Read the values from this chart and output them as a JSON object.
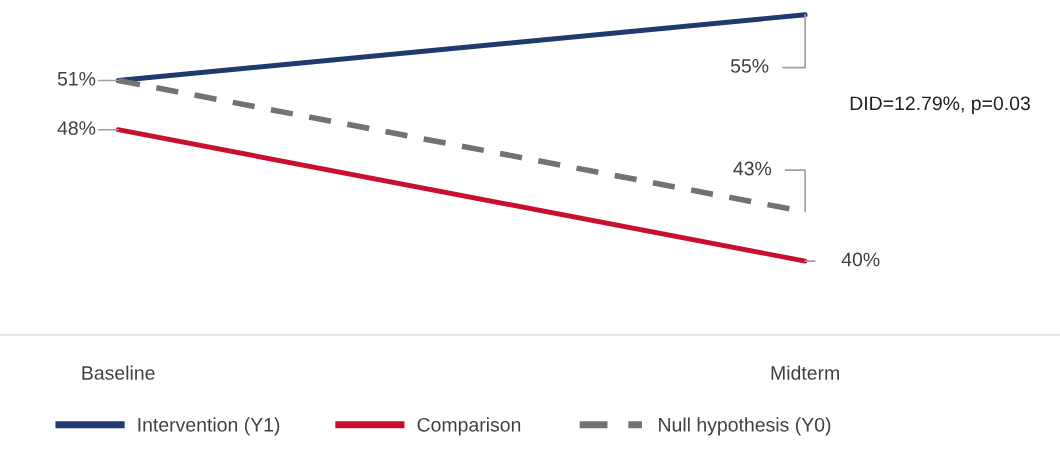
{
  "chart_data": {
    "type": "line",
    "categories": [
      "Baseline",
      "Midterm"
    ],
    "series": [
      {
        "name": "Intervention (Y1)",
        "color": "#1f3a6e",
        "values": [
          51,
          55
        ],
        "value_labels": [
          "51%",
          "55%"
        ],
        "line_style": "solid"
      },
      {
        "name": "Comparison",
        "color": "#c8102e",
        "values": [
          48,
          40
        ],
        "value_labels": [
          "48%",
          "40%"
        ],
        "line_style": "solid"
      },
      {
        "name": "Null hypothesis (Y0)",
        "color": "#767171",
        "values": [
          51,
          43
        ],
        "value_labels": [
          null,
          "43%"
        ],
        "line_style": "dashed"
      }
    ],
    "annotations": [
      {
        "text": "DID=12.79%, p=0.03"
      }
    ],
    "legend": "bottom",
    "grid": false,
    "marker": "none"
  }
}
